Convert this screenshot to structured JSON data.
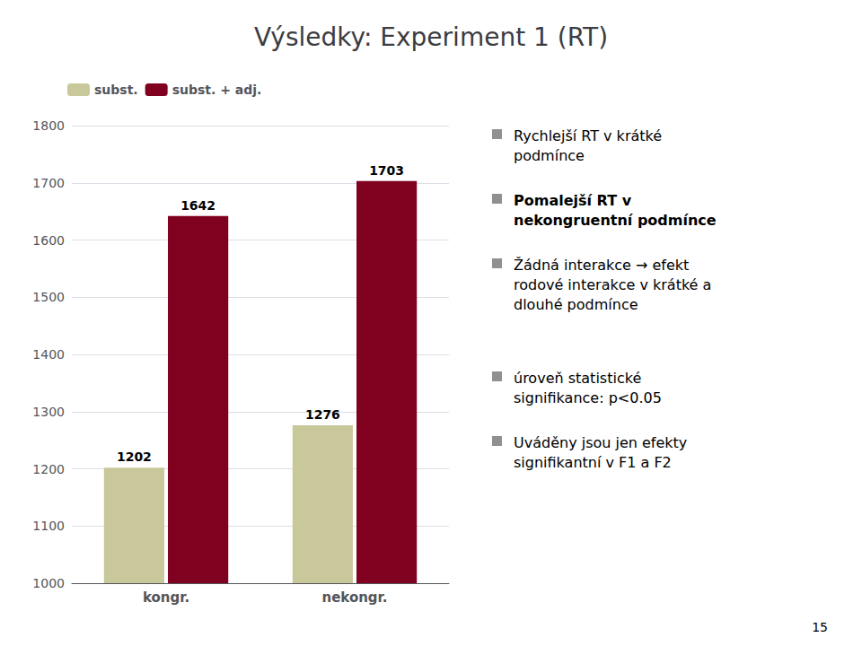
{
  "chart_data": {
    "type": "bar",
    "title": "Výsledky: Experiment 1 (RT)",
    "categories": [
      "kongr.",
      "nekongr."
    ],
    "series": [
      {
        "name": "subst.",
        "values": [
          1202,
          1276
        ],
        "color": "#c8c89a"
      },
      {
        "name": "subst. + adj.",
        "values": [
          1642,
          1703
        ],
        "color": "#800020"
      }
    ],
    "ylim": [
      1000,
      1800
    ],
    "yticks": [
      1000,
      1100,
      1200,
      1300,
      1400,
      1500,
      1600,
      1700,
      1800
    ],
    "grid": true,
    "legend": "upper left",
    "data_labels": true,
    "annotations": [
      "Rychlejší RT v krátké\npodmínce",
      "Pomalejší RT v\nnekongruentní podmínce",
      "Žádná interakce → efekt\nrodové interakce v krátké a\ndlouhé podmínce",
      "úroveň statistické\nsignifikance: p<0.05",
      "Uváděny jsou jen efekty\nsignifikantní v F1 a F2",
      "15"
    ]
  }
}
